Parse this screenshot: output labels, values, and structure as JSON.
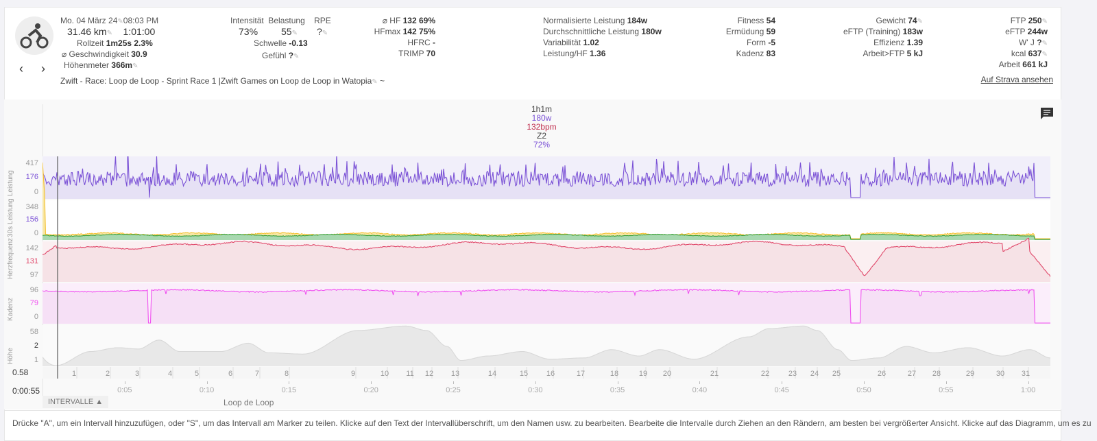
{
  "activity": {
    "date": "Mo. 04 März 24",
    "time": "08:03 PM",
    "distance": "31.46 km",
    "duration": "1:01:00",
    "rollzeit_label": "Rollzeit",
    "rollzeit": "1m25s",
    "rollzeit_pct": "2.3%",
    "speed_label": "⌀ Geschwindigkeit",
    "speed": "30.9",
    "elev_label": "Höhenmeter",
    "elev": "366m",
    "title": "Zwift - Race: Loop de Loop - Sprint Race 1 |Zwift Games on Loop de Loop in Watopia",
    "title_suffix": "~"
  },
  "load": {
    "intensity_label": "Intensität",
    "intensity": "73%",
    "belastung_label": "Belastung",
    "belastung": "55",
    "rpe_label": "RPE",
    "rpe": "?",
    "schwelle_label": "Schwelle",
    "schwelle": "-0.13",
    "gefuehl_label": "Gefühl",
    "gefuehl": "?"
  },
  "hr": [
    {
      "l": "⌀ HF",
      "v": "132  69%"
    },
    {
      "l": "HFmax",
      "v": "142  75%"
    },
    {
      "l": "HFRC",
      "v": "-"
    },
    {
      "l": "TRIMP",
      "v": "70"
    }
  ],
  "power": [
    {
      "l": "Normalisierte Leistung",
      "v": "184w"
    },
    {
      "l": "Durchschnittliche Leistung",
      "v": "180w"
    },
    {
      "l": "Variabilität",
      "v": "1.02"
    },
    {
      "l": "Leistung/HF",
      "v": "1.36"
    }
  ],
  "fitness": [
    {
      "l": "Fitness",
      "v": "54"
    },
    {
      "l": "Ermüdung",
      "v": "59"
    },
    {
      "l": "Form",
      "v": "-5"
    },
    {
      "l": "Kadenz",
      "v": "83"
    }
  ],
  "weight": [
    {
      "l": "Gewicht",
      "v": "74"
    },
    {
      "l": "eFTP (Training)",
      "v": "183w"
    },
    {
      "l": "Effizienz",
      "v": "1.39"
    },
    {
      "l": "Arbeit>FTP",
      "v": "5 kJ"
    }
  ],
  "ftp": [
    {
      "l": "FTP",
      "v": "250"
    },
    {
      "l": "eFTP",
      "v": "244w"
    },
    {
      "l": "W' J",
      "v": "?"
    },
    {
      "l": "kcal",
      "v": "637"
    },
    {
      "l": "Arbeit",
      "v": "661 kJ"
    }
  ],
  "strava_link": "Auf Strava ansehen",
  "summary": {
    "duration": "1h1m",
    "power": "180w",
    "hr": "132bpm",
    "zone": "Z2",
    "pct": "72%"
  },
  "rows": [
    {
      "label": "Leistung",
      "top": "417",
      "mid": "176",
      "bot": "0"
    },
    {
      "label": "30s Leistung",
      "top": "348",
      "mid": "156",
      "bot": "0"
    },
    {
      "label": "Herzfrequenz",
      "top": "142",
      "mid": "131",
      "bot": "97"
    },
    {
      "label": "Kadenz",
      "top": "96",
      "mid": "79",
      "bot": "0"
    },
    {
      "label": "Höhe",
      "top": "58",
      "mid": "2",
      "bot": "1"
    }
  ],
  "elev_bottom": "0.58",
  "cursor_time": "0:00:55",
  "time_ticks": [
    "0:05",
    "0:10",
    "0:15",
    "0:20",
    "0:25",
    "0:30",
    "0:35",
    "0:40",
    "0:45",
    "0:50",
    "0:55",
    "1:00"
  ],
  "intervals": [
    "1",
    "2",
    "3",
    "4",
    "5",
    "6",
    "7",
    "8",
    "9",
    "10",
    "11",
    "12",
    "13",
    "14",
    "15",
    "16",
    "17",
    "18",
    "19",
    "20",
    "21",
    "22",
    "23",
    "24",
    "25",
    "26",
    "27",
    "28",
    "29",
    "30",
    "31"
  ],
  "intervals_button": "INTERVALLE ▲",
  "interval_name": "Loop de Loop",
  "help_text": "Drücke \"A\", um ein Intervall hinzuzufügen, oder \"S\", um das Intervall am Marker zu teilen. Klicke auf den Text der Intervallüberschrift, um den Namen usw. zu bearbeiten. Bearbeite die Intervalle durch Ziehen an den Rändern, am besten bei vergrößerter Ansicht. Klicke auf das Diagramm, um es zu",
  "colors": {
    "power": "#7b52d6",
    "hr": "#e0486a",
    "cadence": "#f050f0",
    "green": "#3aa03a",
    "yellow": "#f4c030"
  }
}
